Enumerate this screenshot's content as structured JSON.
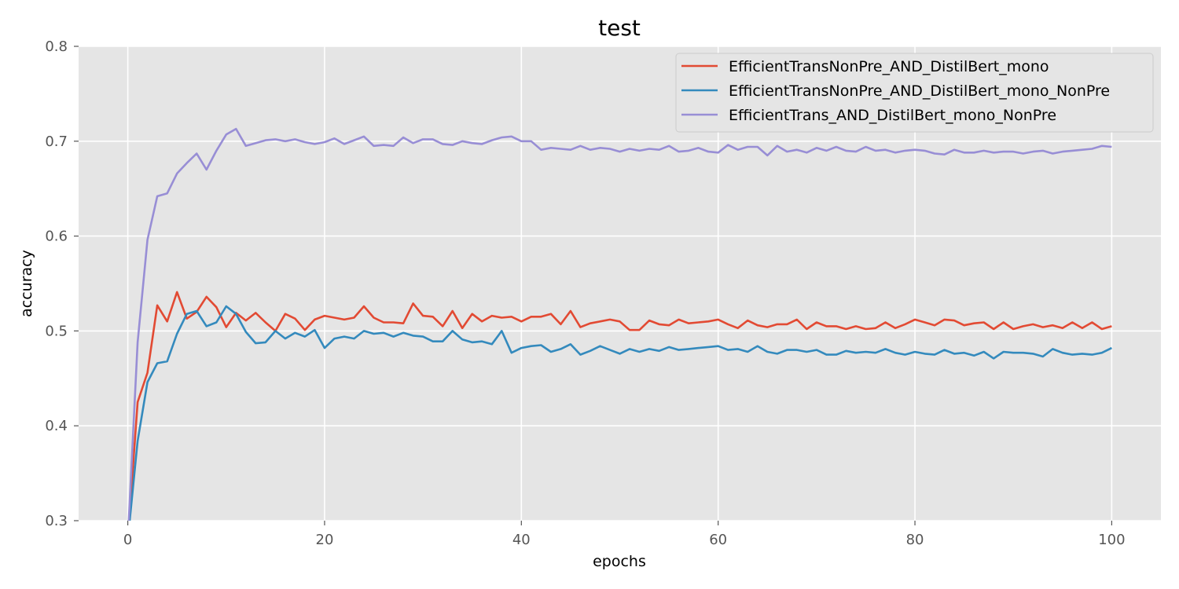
{
  "chart_data": {
    "type": "line",
    "title": "test",
    "xlabel": "epochs",
    "ylabel": "accuracy",
    "xlim": [
      -5,
      105
    ],
    "ylim": [
      0.3,
      0.8
    ],
    "x_ticks": [
      0,
      20,
      40,
      60,
      80,
      100
    ],
    "y_ticks": [
      0.3,
      0.4,
      0.5,
      0.6,
      0.7,
      0.8
    ],
    "x_tick_labels": [
      "0",
      "20",
      "40",
      "60",
      "80",
      "100"
    ],
    "y_tick_labels": [
      "0.3",
      "0.4",
      "0.5",
      "0.6",
      "0.7",
      "0.8"
    ],
    "grid": true,
    "legend_position": "top-right",
    "x": [
      0,
      1,
      2,
      3,
      4,
      5,
      6,
      7,
      8,
      9,
      10,
      11,
      12,
      13,
      14,
      15,
      16,
      17,
      18,
      19,
      20,
      21,
      22,
      23,
      24,
      25,
      26,
      27,
      28,
      29,
      30,
      31,
      32,
      33,
      34,
      35,
      36,
      37,
      38,
      39,
      40,
      41,
      42,
      43,
      44,
      45,
      46,
      47,
      48,
      49,
      50,
      51,
      52,
      53,
      54,
      55,
      56,
      57,
      58,
      59,
      60,
      61,
      62,
      63,
      64,
      65,
      66,
      67,
      68,
      69,
      70,
      71,
      72,
      73,
      74,
      75,
      76,
      77,
      78,
      79,
      80,
      81,
      82,
      83,
      84,
      85,
      86,
      87,
      88,
      89,
      90,
      91,
      92,
      93,
      94,
      95,
      96,
      97,
      98,
      99,
      100
    ],
    "series": [
      {
        "name": "EfficientTransNonPre_AND_DistilBert_mono",
        "color": "#e24a33",
        "values": [
          0.28,
          0.425,
          0.456,
          0.527,
          0.51,
          0.541,
          0.513,
          0.52,
          0.536,
          0.525,
          0.504,
          0.519,
          0.511,
          0.519,
          0.509,
          0.5,
          0.518,
          0.513,
          0.501,
          0.512,
          0.516,
          0.514,
          0.512,
          0.514,
          0.526,
          0.514,
          0.509,
          0.509,
          0.508,
          0.529,
          0.516,
          0.515,
          0.505,
          0.521,
          0.503,
          0.518,
          0.51,
          0.516,
          0.514,
          0.515,
          0.51,
          0.515,
          0.515,
          0.518,
          0.507,
          0.521,
          0.504,
          0.508,
          0.51,
          0.512,
          0.51,
          0.501,
          0.501,
          0.511,
          0.507,
          0.506,
          0.512,
          0.508,
          0.509,
          0.51,
          0.512,
          0.507,
          0.503,
          0.511,
          0.506,
          0.504,
          0.507,
          0.507,
          0.512,
          0.502,
          0.509,
          0.505,
          0.505,
          0.502,
          0.505,
          0.502,
          0.503,
          0.509,
          0.503,
          0.507,
          0.512,
          0.509,
          0.506,
          0.512,
          0.511,
          0.506,
          0.508,
          0.509,
          0.502,
          0.509,
          0.502,
          0.505,
          0.507,
          0.504,
          0.506,
          0.503,
          0.509,
          0.503,
          0.509,
          0.502,
          0.505
        ]
      },
      {
        "name": "EfficientTransNonPre_AND_DistilBert_mono_NonPre",
        "color": "#348abd",
        "values": [
          0.28,
          0.384,
          0.446,
          0.466,
          0.468,
          0.497,
          0.518,
          0.521,
          0.505,
          0.509,
          0.526,
          0.518,
          0.499,
          0.487,
          0.488,
          0.5,
          0.492,
          0.498,
          0.494,
          0.501,
          0.482,
          0.492,
          0.494,
          0.492,
          0.5,
          0.497,
          0.498,
          0.494,
          0.498,
          0.495,
          0.494,
          0.489,
          0.489,
          0.5,
          0.491,
          0.488,
          0.489,
          0.486,
          0.5,
          0.477,
          0.482,
          0.484,
          0.485,
          0.478,
          0.481,
          0.486,
          0.475,
          0.479,
          0.484,
          0.48,
          0.476,
          0.481,
          0.478,
          0.481,
          0.479,
          0.483,
          0.48,
          0.481,
          0.482,
          0.483,
          0.484,
          0.48,
          0.481,
          0.478,
          0.484,
          0.478,
          0.476,
          0.48,
          0.48,
          0.478,
          0.48,
          0.475,
          0.475,
          0.479,
          0.477,
          0.478,
          0.477,
          0.481,
          0.477,
          0.475,
          0.478,
          0.476,
          0.475,
          0.48,
          0.476,
          0.477,
          0.474,
          0.478,
          0.471,
          0.478,
          0.477,
          0.477,
          0.476,
          0.473,
          0.481,
          0.477,
          0.475,
          0.476,
          0.475,
          0.477,
          0.482
        ]
      },
      {
        "name": "EfficientTrans_AND_DistilBert_mono_NonPre",
        "color": "#988ed5",
        "values": [
          0.28,
          0.488,
          0.596,
          0.642,
          0.645,
          0.666,
          0.677,
          0.687,
          0.67,
          0.69,
          0.707,
          0.713,
          0.695,
          0.698,
          0.701,
          0.702,
          0.7,
          0.702,
          0.699,
          0.697,
          0.699,
          0.703,
          0.697,
          0.701,
          0.705,
          0.695,
          0.696,
          0.695,
          0.704,
          0.698,
          0.702,
          0.702,
          0.697,
          0.696,
          0.7,
          0.698,
          0.697,
          0.701,
          0.704,
          0.705,
          0.7,
          0.7,
          0.691,
          0.693,
          0.692,
          0.691,
          0.695,
          0.691,
          0.693,
          0.692,
          0.689,
          0.692,
          0.69,
          0.692,
          0.691,
          0.695,
          0.689,
          0.69,
          0.693,
          0.689,
          0.688,
          0.696,
          0.691,
          0.694,
          0.694,
          0.685,
          0.695,
          0.689,
          0.691,
          0.688,
          0.693,
          0.69,
          0.694,
          0.69,
          0.689,
          0.694,
          0.69,
          0.691,
          0.688,
          0.69,
          0.691,
          0.69,
          0.687,
          0.686,
          0.691,
          0.688,
          0.688,
          0.69,
          0.688,
          0.689,
          0.689,
          0.687,
          0.689,
          0.69,
          0.687,
          0.689,
          0.69,
          0.691,
          0.692,
          0.695,
          0.694
        ]
      }
    ]
  },
  "colors": {
    "plot_background": "#e5e5e5",
    "grid": "#ffffff",
    "tick_mark": "#555555"
  }
}
